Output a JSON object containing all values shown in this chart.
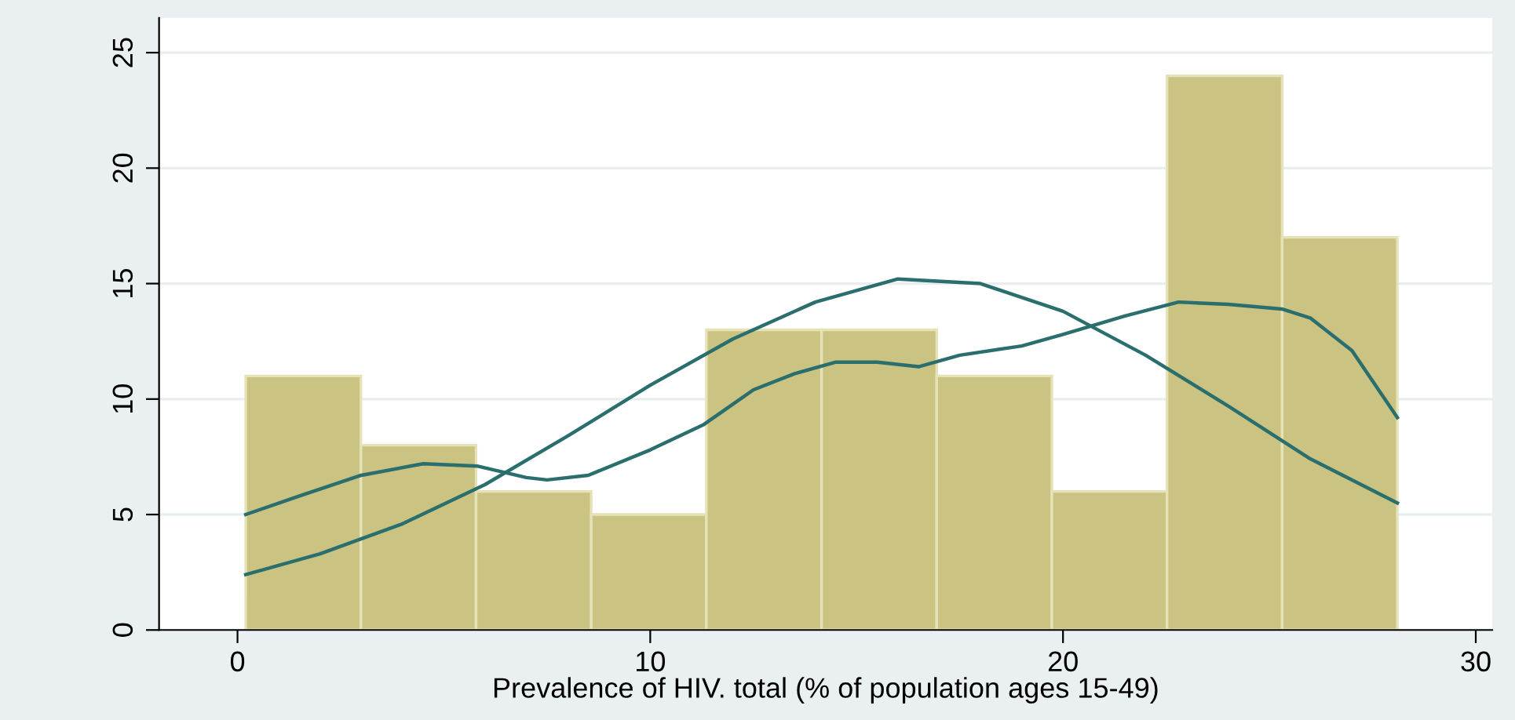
{
  "chart_data": {
    "type": "histogram",
    "xlabel": "Prevalence of HIV. total (% of population ages 15-49)",
    "bins": [
      0.2,
      2.99,
      5.78,
      8.57,
      11.36,
      14.15,
      16.94,
      19.73,
      22.52,
      25.31,
      28.1
    ],
    "values": [
      11,
      8,
      6,
      5,
      13,
      13,
      11,
      6,
      24,
      17
    ],
    "color": "#cbc382",
    "series": [
      {
        "type": "line",
        "color": "#2a6e6e",
        "x": [
          0.2,
          2,
          4,
          6,
          8,
          10,
          12,
          14,
          16,
          18,
          20,
          22,
          24,
          26,
          28.1
        ],
        "values": [
          2.4,
          3.3,
          4.6,
          6.3,
          8.4,
          10.6,
          12.6,
          14.2,
          15.2,
          15.0,
          13.8,
          11.9,
          9.7,
          7.4,
          5.5
        ]
      },
      {
        "type": "line",
        "color": "#2a6e6e",
        "x": [
          0.2,
          1.5,
          3,
          4.5,
          5.8,
          7,
          7.5,
          8.5,
          10,
          11.3,
          12.5,
          13.5,
          14.5,
          15.5,
          16.5,
          17.5,
          19,
          20,
          21.5,
          22.8,
          24,
          25.3,
          26,
          27,
          28.1
        ],
        "values": [
          5.0,
          5.8,
          6.7,
          7.2,
          7.1,
          6.6,
          6.5,
          6.7,
          7.8,
          8.9,
          10.4,
          11.1,
          11.6,
          11.6,
          11.4,
          11.9,
          12.3,
          12.8,
          13.6,
          14.2,
          14.1,
          13.9,
          13.5,
          12.1,
          9.2
        ]
      }
    ],
    "xlim": [
      -1.9,
      30.4
    ],
    "xticks": [
      0,
      10,
      20,
      30
    ],
    "ylim": [
      0,
      26.5
    ],
    "yticks": [
      0,
      5,
      10,
      15,
      20,
      25
    ],
    "grid": "y"
  }
}
